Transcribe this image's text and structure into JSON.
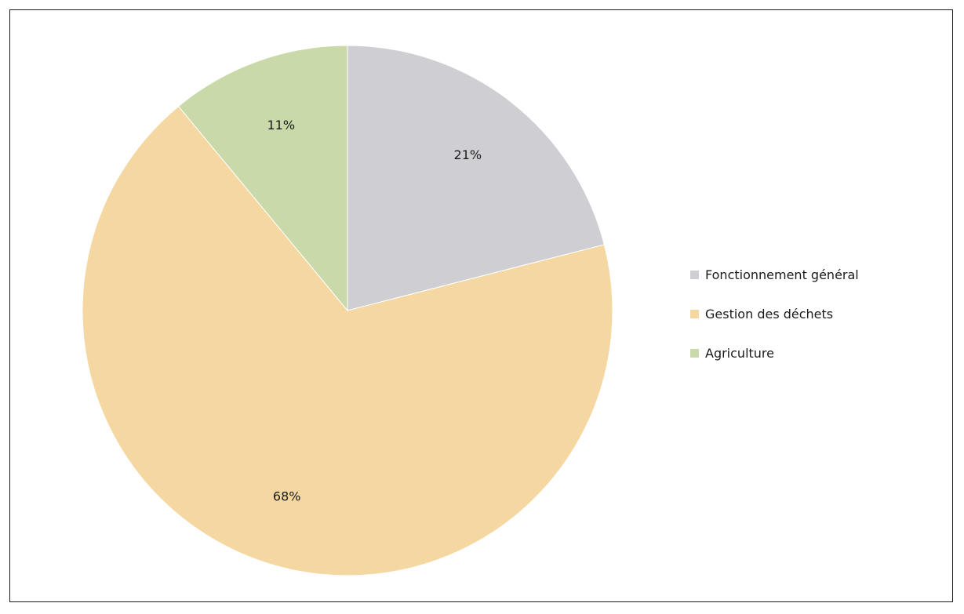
{
  "chart_data": {
    "type": "pie",
    "start_angle": "12-o-clock",
    "direction": "clockwise",
    "slices": [
      {
        "name": "Fonctionnement général",
        "value": 21,
        "label": "21%",
        "color": "#cfced3"
      },
      {
        "name": "Gestion des déchets",
        "value": 68,
        "label": "68%",
        "color": "#f5d7a1"
      },
      {
        "name": "Agriculture",
        "value": 11,
        "label": "11%",
        "color": "#cad9a9"
      }
    ],
    "legend": {
      "placement": "right",
      "entries": [
        "Fonctionnement général",
        "Gestion des déchets",
        "Agriculture"
      ]
    }
  }
}
